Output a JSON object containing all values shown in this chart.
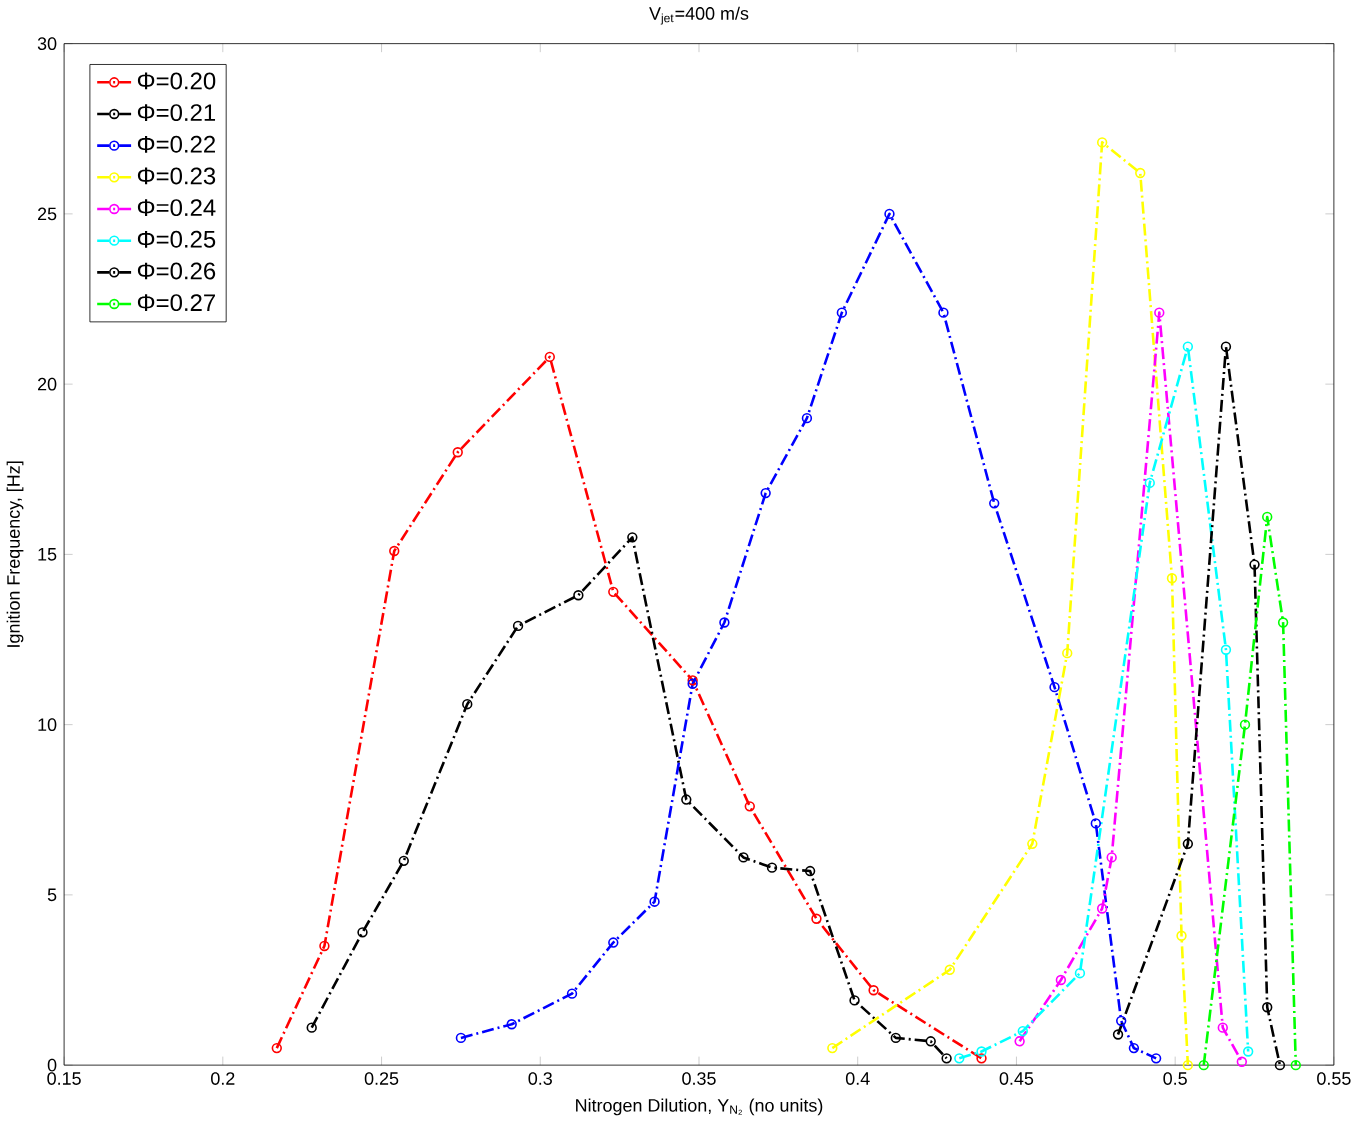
{
  "chart_data": {
    "type": "line",
    "title": "V$_{jet}$=400 m/s",
    "xlabel": "Nitrogen Dilution, Y$_{N₂}$ (no units)",
    "ylabel": "Ignition Frequency, [Hz]",
    "xlim": [
      0.15,
      0.55
    ],
    "ylim": [
      0,
      30
    ],
    "xticks": [
      0.15,
      0.2,
      0.25,
      0.3,
      0.35,
      0.4,
      0.45,
      0.5,
      0.55
    ],
    "yticks": [
      0,
      5,
      10,
      15,
      20,
      25,
      30
    ],
    "legend": "top left",
    "marker": "circle",
    "line_style": "dashdot",
    "grid": false,
    "series": [
      {
        "name": "Φ=0.20",
        "color": "#ff0000",
        "x": [
          0.217,
          0.232,
          0.254,
          0.274,
          0.303,
          0.323,
          0.348,
          0.366,
          0.387,
          0.405,
          0.439
        ],
        "values": [
          0.5,
          3.5,
          15.1,
          18.0,
          20.8,
          13.9,
          11.3,
          7.6,
          4.3,
          2.2,
          0.2
        ]
      },
      {
        "name": "Φ=0.21",
        "color": "#000000",
        "x": [
          0.228,
          0.244,
          0.257,
          0.277,
          0.293,
          0.312,
          0.329,
          0.346,
          0.364,
          0.373,
          0.385,
          0.399,
          0.412,
          0.423,
          0.428
        ],
        "values": [
          1.1,
          3.9,
          6.0,
          10.6,
          12.9,
          13.8,
          15.5,
          7.8,
          6.1,
          5.8,
          5.7,
          1.9,
          0.8,
          0.7,
          0.2
        ]
      },
      {
        "name": "Φ=0.22",
        "color": "#0000ff",
        "x": [
          0.275,
          0.291,
          0.31,
          0.323,
          0.336,
          0.348,
          0.358,
          0.371,
          0.384,
          0.395,
          0.41,
          0.427,
          0.443,
          0.462,
          0.475,
          0.483,
          0.487,
          0.494
        ],
        "values": [
          0.8,
          1.2,
          2.1,
          3.6,
          4.8,
          11.2,
          13.0,
          16.8,
          19.0,
          22.1,
          25.0,
          22.1,
          16.5,
          11.1,
          7.1,
          1.3,
          0.5,
          0.2
        ]
      },
      {
        "name": "Φ=0.23",
        "color": "#ffff00",
        "x": [
          0.392,
          0.429,
          0.455,
          0.466,
          0.477,
          0.489,
          0.499,
          0.502,
          0.504
        ],
        "values": [
          0.5,
          2.8,
          6.5,
          12.1,
          27.1,
          26.2,
          14.3,
          3.8,
          0
        ]
      },
      {
        "name": "Φ=0.24",
        "color": "#ff00ff",
        "x": [
          0.451,
          0.464,
          0.477,
          0.48,
          0.495,
          0.515,
          0.521
        ],
        "values": [
          0.7,
          2.5,
          4.6,
          6.1,
          22.1,
          1.1,
          0.1
        ]
      },
      {
        "name": "Φ=0.25",
        "color": "#00ffff",
        "x": [
          0.432,
          0.439,
          0.452,
          0.47,
          0.492,
          0.504,
          0.516,
          0.523
        ],
        "values": [
          0.2,
          0.4,
          1.0,
          2.7,
          17.1,
          21.1,
          12.2,
          0.4
        ]
      },
      {
        "name": "Φ=0.26",
        "color": "#000000",
        "x": [
          0.482,
          0.504,
          0.516,
          0.525,
          0.529,
          0.533
        ],
        "values": [
          0.9,
          6.5,
          21.1,
          14.7,
          1.7,
          0
        ]
      },
      {
        "name": "Φ=0.27",
        "color": "#00ff00",
        "x": [
          0.509,
          0.522,
          0.529,
          0.534,
          0.538
        ],
        "values": [
          0,
          10.0,
          16.1,
          13.0,
          0
        ]
      }
    ]
  }
}
